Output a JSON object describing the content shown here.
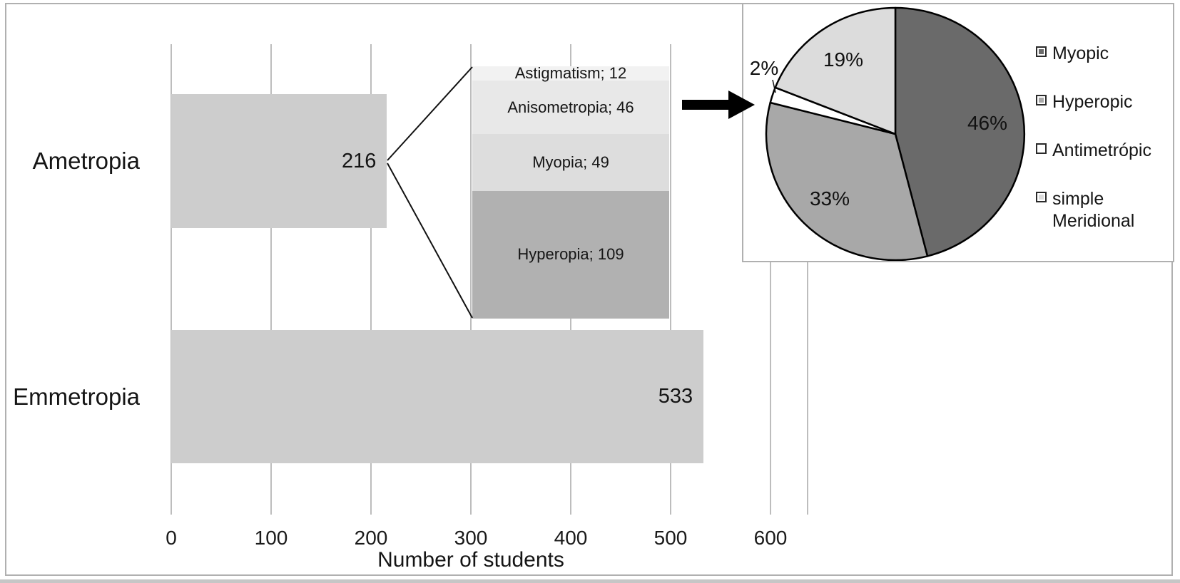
{
  "chart_data": [
    {
      "type": "bar",
      "orientation": "horizontal",
      "title": "",
      "categories": [
        "Ametropia",
        "Emmetropia"
      ],
      "values": [
        216,
        533
      ],
      "value_labels": [
        "216",
        "533"
      ],
      "xlabel": "Number of students",
      "ylabel": "",
      "xlim": [
        0,
        637
      ],
      "ticks": [
        0,
        100,
        200,
        300,
        400,
        500,
        600
      ],
      "grid": true,
      "bar_color": "#cdcdcd"
    },
    {
      "type": "bar",
      "subtype": "stacked-breakdown-of-ametropia",
      "categories": [
        "Ametropia"
      ],
      "total": 216,
      "separator": "; ",
      "series": [
        {
          "name": "Astigmatism",
          "values": [
            12
          ],
          "color": "#f2f2f2"
        },
        {
          "name": "Anisometropia",
          "values": [
            46
          ],
          "color": "#e8e8e8"
        },
        {
          "name": "Myopia",
          "values": [
            49
          ],
          "color": "#dddddd"
        },
        {
          "name": "Hyperopia",
          "values": [
            109
          ],
          "color": "#b1b1b1"
        }
      ]
    },
    {
      "type": "pie",
      "labels": [
        "Myopic",
        "Hyperopic",
        "Antimetrópic",
        "simple Meridional"
      ],
      "values": [
        46,
        33,
        2,
        19
      ],
      "labels_pct": [
        "46%",
        "33%",
        "2%",
        "19%"
      ],
      "colors": [
        "#6a6a6a",
        "#a8a8a8",
        "#ffffff",
        "#dcdcdc"
      ],
      "outside_label_index": 2,
      "legend_position": "right",
      "start_angle": "top",
      "direction": "clockwise"
    }
  ]
}
